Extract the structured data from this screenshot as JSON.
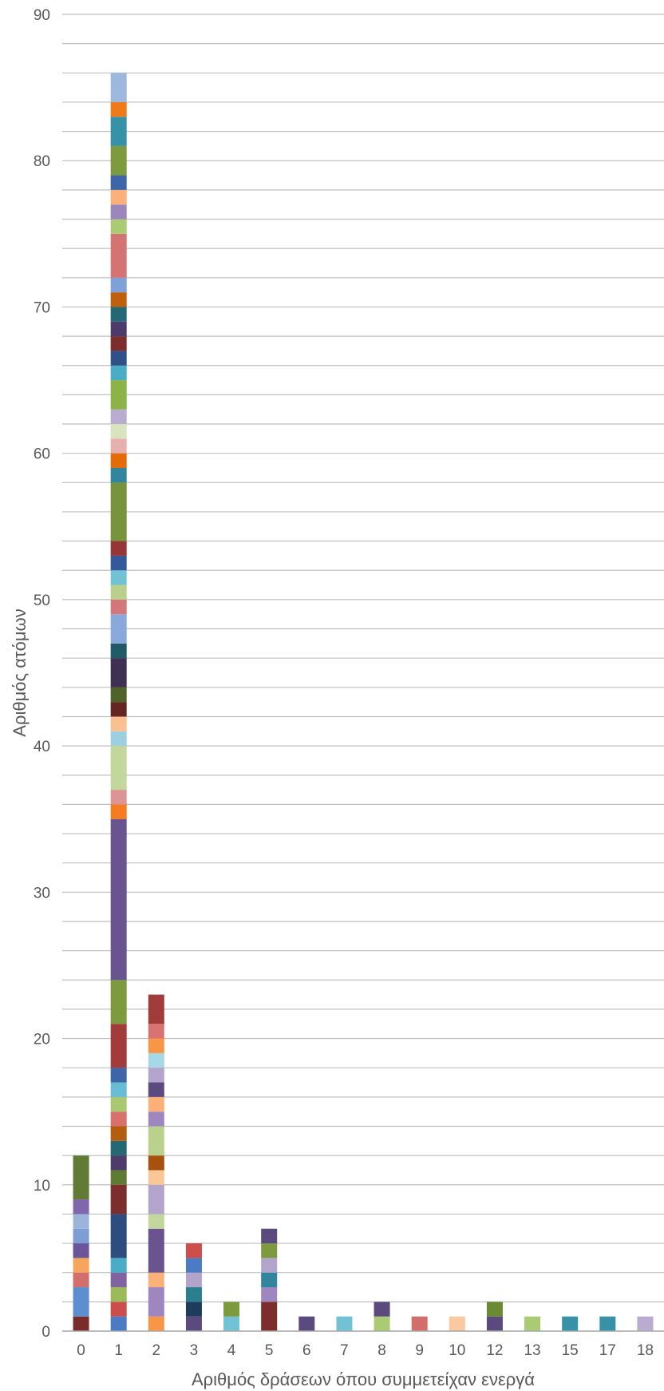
{
  "chart_data": {
    "type": "bar",
    "stacked": true,
    "categories": [
      "0",
      "1",
      "2",
      "3",
      "4",
      "5",
      "6",
      "7",
      "8",
      "9",
      "10",
      "12",
      "13",
      "15",
      "17",
      "18"
    ],
    "values": [
      12,
      86,
      23,
      6,
      2,
      7,
      1,
      1,
      2,
      1,
      1,
      2,
      1,
      1,
      1,
      1
    ],
    "segments": [
      [
        {
          "from": 0,
          "to": 1,
          "color": "#7a2c2b"
        },
        {
          "from": 1,
          "to": 3,
          "color": "#5b8fd0"
        },
        {
          "from": 3,
          "to": 4,
          "color": "#d26f6c"
        },
        {
          "from": 4,
          "to": 5,
          "color": "#f5a55c"
        },
        {
          "from": 5,
          "to": 6,
          "color": "#6c5499"
        },
        {
          "from": 6,
          "to": 7,
          "color": "#7e9ed3"
        },
        {
          "from": 7,
          "to": 8,
          "color": "#9db4d9"
        },
        {
          "from": 8,
          "to": 9,
          "color": "#8066ad"
        },
        {
          "from": 9,
          "to": 12,
          "color": "#5f7b35"
        }
      ],
      [
        {
          "from": 0,
          "to": 1,
          "color": "#4a7bc4"
        },
        {
          "from": 1,
          "to": 2,
          "color": "#cc4d4a"
        },
        {
          "from": 2,
          "to": 3,
          "color": "#9bbb59"
        },
        {
          "from": 3,
          "to": 4,
          "color": "#8064a2"
        },
        {
          "from": 4,
          "to": 5,
          "color": "#4bacc6"
        },
        {
          "from": 5,
          "to": 8,
          "color": "#2c4d7e"
        },
        {
          "from": 8,
          "to": 10,
          "color": "#7b2e2b"
        },
        {
          "from": 10,
          "to": 11,
          "color": "#5e7a33"
        },
        {
          "from": 11,
          "to": 12,
          "color": "#4d3b6b"
        },
        {
          "from": 12,
          "to": 13,
          "color": "#236873"
        },
        {
          "from": 13,
          "to": 14,
          "color": "#b35e0f"
        },
        {
          "from": 14,
          "to": 15,
          "color": "#d8706b"
        },
        {
          "from": 15,
          "to": 16,
          "color": "#a9c871"
        },
        {
          "from": 16,
          "to": 17,
          "color": "#68bcd3"
        },
        {
          "from": 17,
          "to": 18,
          "color": "#3d65a8"
        },
        {
          "from": 18,
          "to": 21,
          "color": "#a23c3a"
        },
        {
          "from": 21,
          "to": 24,
          "color": "#7d9a3e"
        },
        {
          "from": 24,
          "to": 35,
          "color": "#6a548f"
        },
        {
          "from": 35,
          "to": 36,
          "color": "#f57c1f"
        },
        {
          "from": 36,
          "to": 37,
          "color": "#dd9494"
        },
        {
          "from": 37,
          "to": 40,
          "color": "#c3d69b"
        },
        {
          "from": 40,
          "to": 41,
          "color": "#9ccfe0"
        },
        {
          "from": 41,
          "to": 42,
          "color": "#fbc08f"
        },
        {
          "from": 42,
          "to": 43,
          "color": "#632622"
        },
        {
          "from": 43,
          "to": 44,
          "color": "#4f6228"
        },
        {
          "from": 44,
          "to": 46,
          "color": "#3f3151"
        },
        {
          "from": 46,
          "to": 47,
          "color": "#1f5a66"
        },
        {
          "from": 47,
          "to": 49,
          "color": "#8aa9db"
        },
        {
          "from": 49,
          "to": 50,
          "color": "#d4777a"
        },
        {
          "from": 50,
          "to": 51,
          "color": "#b9d18c"
        },
        {
          "from": 51,
          "to": 52,
          "color": "#72c2d6"
        },
        {
          "from": 52,
          "to": 53,
          "color": "#33599a"
        },
        {
          "from": 53,
          "to": 54,
          "color": "#963634"
        },
        {
          "from": 54,
          "to": 58,
          "color": "#77933c"
        },
        {
          "from": 58,
          "to": 59,
          "color": "#31859c"
        },
        {
          "from": 59,
          "to": 60,
          "color": "#e36c09"
        },
        {
          "from": 60,
          "to": 61,
          "color": "#e6b0ae"
        },
        {
          "from": 61,
          "to": 62,
          "color": "#d7e4bd"
        },
        {
          "from": 62,
          "to": 63,
          "color": "#b9acd0"
        },
        {
          "from": 63,
          "to": 65,
          "color": "#8db348"
        },
        {
          "from": 65,
          "to": 66,
          "color": "#4bacc6"
        },
        {
          "from": 66,
          "to": 67,
          "color": "#30508a"
        },
        {
          "from": 67,
          "to": 68,
          "color": "#7b2e2b"
        },
        {
          "from": 68,
          "to": 69,
          "color": "#4d3b6b"
        },
        {
          "from": 69,
          "to": 70,
          "color": "#236873"
        },
        {
          "from": 70,
          "to": 71,
          "color": "#c0600c"
        },
        {
          "from": 71,
          "to": 72,
          "color": "#7ea1d8"
        },
        {
          "from": 72,
          "to": 75,
          "color": "#d47472"
        },
        {
          "from": 75,
          "to": 76,
          "color": "#aacb74"
        },
        {
          "from": 76,
          "to": 77,
          "color": "#9c87bd"
        },
        {
          "from": 77,
          "to": 78,
          "color": "#fbb079"
        },
        {
          "from": 78,
          "to": 79,
          "color": "#3d65a8"
        },
        {
          "from": 79,
          "to": 81,
          "color": "#7d9a3e"
        },
        {
          "from": 81,
          "to": 83,
          "color": "#3792a8"
        },
        {
          "from": 83,
          "to": 84,
          "color": "#f07a1a"
        },
        {
          "from": 84,
          "to": 86,
          "color": "#9db8dd"
        }
      ],
      [
        {
          "from": 0,
          "to": 1,
          "color": "#f79646"
        },
        {
          "from": 1,
          "to": 3,
          "color": "#9e86bf"
        },
        {
          "from": 3,
          "to": 4,
          "color": "#fbb079"
        },
        {
          "from": 4,
          "to": 7,
          "color": "#6a548f"
        },
        {
          "from": 7,
          "to": 8,
          "color": "#c3d69b"
        },
        {
          "from": 8,
          "to": 10,
          "color": "#b3a4cb"
        },
        {
          "from": 10,
          "to": 11,
          "color": "#fcc796"
        },
        {
          "from": 11,
          "to": 12,
          "color": "#a8500e"
        },
        {
          "from": 12,
          "to": 14,
          "color": "#b9d18c"
        },
        {
          "from": 14,
          "to": 15,
          "color": "#9e86bf"
        },
        {
          "from": 15,
          "to": 16,
          "color": "#fbb079"
        },
        {
          "from": 16,
          "to": 17,
          "color": "#5b4a7d"
        },
        {
          "from": 17,
          "to": 18,
          "color": "#b3a4cb"
        },
        {
          "from": 18,
          "to": 19,
          "color": "#a6d8e6"
        },
        {
          "from": 19,
          "to": 20,
          "color": "#f79646"
        },
        {
          "from": 20,
          "to": 21,
          "color": "#d87373"
        },
        {
          "from": 21,
          "to": 23,
          "color": "#a23c3a"
        }
      ],
      [
        {
          "from": 0,
          "to": 1,
          "color": "#5b4a7d"
        },
        {
          "from": 1,
          "to": 2,
          "color": "#1f3b5c"
        },
        {
          "from": 2,
          "to": 3,
          "color": "#2a7f8f"
        },
        {
          "from": 3,
          "to": 4,
          "color": "#b3a4cb"
        },
        {
          "from": 4,
          "to": 5,
          "color": "#4a7bc4"
        },
        {
          "from": 5,
          "to": 6,
          "color": "#cc4d4a"
        }
      ],
      [
        {
          "from": 0,
          "to": 1,
          "color": "#72c2d6"
        },
        {
          "from": 1,
          "to": 2,
          "color": "#7d9a3e"
        }
      ],
      [
        {
          "from": 0,
          "to": 2,
          "color": "#7b2e2b"
        },
        {
          "from": 2,
          "to": 3,
          "color": "#9e86bf"
        },
        {
          "from": 3,
          "to": 4,
          "color": "#31859c"
        },
        {
          "from": 4,
          "to": 5,
          "color": "#b3a4cb"
        },
        {
          "from": 5,
          "to": 6,
          "color": "#7d9a3e"
        },
        {
          "from": 6,
          "to": 7,
          "color": "#5b4a7d"
        }
      ],
      [
        {
          "from": 0,
          "to": 1,
          "color": "#5b4a7d"
        }
      ],
      [
        {
          "from": 0,
          "to": 1,
          "color": "#72c2d6"
        }
      ],
      [
        {
          "from": 0,
          "to": 1,
          "color": "#aacb74"
        },
        {
          "from": 1,
          "to": 2,
          "color": "#5b4a7d"
        }
      ],
      [
        {
          "from": 0,
          "to": 1,
          "color": "#d26f6c"
        }
      ],
      [
        {
          "from": 0,
          "to": 1,
          "color": "#fbc9a0"
        }
      ],
      [
        {
          "from": 0,
          "to": 1,
          "color": "#5b4a7d"
        },
        {
          "from": 1,
          "to": 2,
          "color": "#6b8a33"
        }
      ],
      [
        {
          "from": 0,
          "to": 1,
          "color": "#aacb74"
        }
      ],
      [
        {
          "from": 0,
          "to": 1,
          "color": "#3792a8"
        }
      ],
      [
        {
          "from": 0,
          "to": 1,
          "color": "#3792a8"
        }
      ],
      [
        {
          "from": 0,
          "to": 1,
          "color": "#b9acd0"
        }
      ]
    ],
    "title": "",
    "xlabel": "Αριθμός δράσεων όπου συμμετείχαν ενεργά",
    "ylabel": "Αριθμός ατόμων",
    "ylim": [
      0,
      90
    ],
    "yticks": [
      "0",
      "10",
      "20",
      "30",
      "40",
      "50",
      "60",
      "70",
      "80",
      "90"
    ],
    "grid": true,
    "minor_grid_step": 2,
    "legend": "none"
  }
}
